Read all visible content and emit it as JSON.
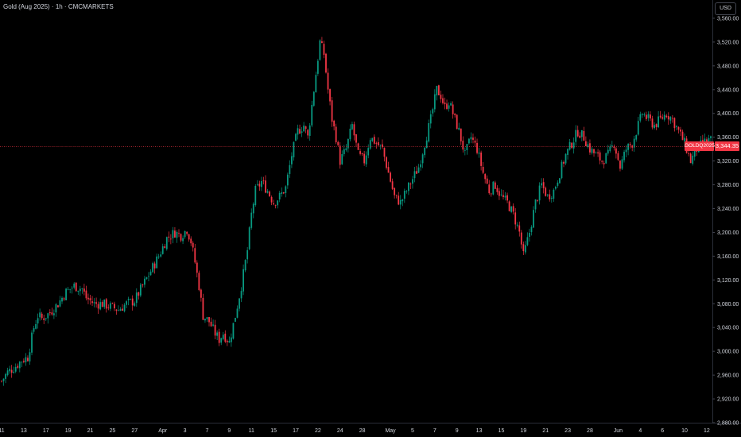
{
  "header": {
    "title": "Gold (Aug 2025) · 1h · CMCMARKETS",
    "currency": "USD"
  },
  "last_price": {
    "symbol": "GOLDQ2025",
    "value": "3,344.35",
    "y": 3344.35
  },
  "colors": {
    "up": "#089981",
    "down": "#f23645",
    "background": "#000000",
    "text": "#d1d4dc",
    "price_line": "#f23645"
  },
  "chart_data": {
    "type": "candlestick",
    "title": "Gold (Aug 2025) · 1h · CMCMARKETS",
    "ylim": [
      2880,
      3580
    ],
    "y_scale": "linear",
    "grid": false,
    "y_ticks": [
      2880,
      2920,
      2960,
      3000,
      3040,
      3080,
      3120,
      3160,
      3200,
      3240,
      3280,
      3320,
      3360,
      3400,
      3440,
      3480,
      3520,
      3560
    ],
    "y_tick_labels": [
      "2,880.00",
      "2,920.00",
      "2,960.00",
      "3,000.00",
      "3,040.00",
      "3,080.00",
      "3,120.00",
      "3,160.00",
      "3,200.00",
      "3,240.00",
      "3,280.00",
      "3,320.00",
      "3,360.00",
      "3,400.00",
      "3,440.00",
      "3,480.00",
      "3,520.00",
      "3,560.00"
    ],
    "x_tick_labels": [
      "11",
      "13",
      "17",
      "19",
      "21",
      "25",
      "27",
      "Apr",
      "3",
      "7",
      "9",
      "11",
      "15",
      "17",
      "22",
      "24",
      "28",
      "May",
      "5",
      "7",
      "9",
      "13",
      "15",
      "19",
      "21",
      "23",
      "28",
      "Jun",
      "4",
      "6",
      "10",
      "12"
    ],
    "x_tick_index": [
      0,
      11,
      22,
      33,
      44,
      55,
      66,
      80,
      91,
      102,
      113,
      124,
      135,
      146,
      157,
      168,
      179,
      193,
      204,
      215,
      226,
      237,
      248,
      259,
      270,
      281,
      292,
      306,
      317,
      328,
      339,
      350
    ],
    "x_index_range": [
      0,
      352
    ],
    "path_keypoints": [
      [
        0,
        2950
      ],
      [
        3,
        2965
      ],
      [
        7,
        2975
      ],
      [
        10,
        2985
      ],
      [
        13,
        2990
      ],
      [
        16,
        3040
      ],
      [
        18,
        3060
      ],
      [
        20,
        3055
      ],
      [
        24,
        3065
      ],
      [
        28,
        3080
      ],
      [
        32,
        3100
      ],
      [
        36,
        3110
      ],
      [
        40,
        3105
      ],
      [
        42,
        3090
      ],
      [
        46,
        3080
      ],
      [
        50,
        3080
      ],
      [
        54,
        3075
      ],
      [
        58,
        3070
      ],
      [
        62,
        3080
      ],
      [
        66,
        3085
      ],
      [
        70,
        3110
      ],
      [
        74,
        3135
      ],
      [
        78,
        3160
      ],
      [
        82,
        3190
      ],
      [
        86,
        3200
      ],
      [
        89,
        3195
      ],
      [
        92,
        3205
      ],
      [
        94,
        3185
      ],
      [
        96,
        3150
      ],
      [
        98,
        3110
      ],
      [
        100,
        3060
      ],
      [
        103,
        3050
      ],
      [
        106,
        3030
      ],
      [
        108,
        3020
      ],
      [
        110,
        3030
      ],
      [
        113,
        3015
      ],
      [
        116,
        3060
      ],
      [
        119,
        3110
      ],
      [
        122,
        3170
      ],
      [
        124,
        3230
      ],
      [
        126,
        3270
      ],
      [
        129,
        3285
      ],
      [
        132,
        3270
      ],
      [
        135,
        3250
      ],
      [
        138,
        3260
      ],
      [
        141,
        3275
      ],
      [
        144,
        3330
      ],
      [
        147,
        3370
      ],
      [
        150,
        3380
      ],
      [
        152,
        3360
      ],
      [
        155,
        3440
      ],
      [
        158,
        3520
      ],
      [
        160,
        3500
      ],
      [
        162,
        3440
      ],
      [
        164,
        3390
      ],
      [
        166,
        3360
      ],
      [
        168,
        3320
      ],
      [
        171,
        3340
      ],
      [
        174,
        3380
      ],
      [
        177,
        3330
      ],
      [
        180,
        3320
      ],
      [
        183,
        3360
      ],
      [
        186,
        3350
      ],
      [
        189,
        3340
      ],
      [
        192,
        3300
      ],
      [
        195,
        3260
      ],
      [
        198,
        3250
      ],
      [
        201,
        3270
      ],
      [
        204,
        3290
      ],
      [
        207,
        3310
      ],
      [
        210,
        3350
      ],
      [
        213,
        3390
      ],
      [
        216,
        3440
      ],
      [
        218,
        3430
      ],
      [
        220,
        3410
      ],
      [
        222,
        3420
      ],
      [
        224,
        3400
      ],
      [
        227,
        3370
      ],
      [
        230,
        3330
      ],
      [
        233,
        3360
      ],
      [
        236,
        3340
      ],
      [
        239,
        3300
      ],
      [
        242,
        3270
      ],
      [
        245,
        3280
      ],
      [
        248,
        3260
      ],
      [
        251,
        3250
      ],
      [
        254,
        3230
      ],
      [
        257,
        3200
      ],
      [
        259,
        3160
      ],
      [
        262,
        3200
      ],
      [
        265,
        3250
      ],
      [
        268,
        3280
      ],
      [
        271,
        3260
      ],
      [
        274,
        3270
      ],
      [
        277,
        3300
      ],
      [
        280,
        3330
      ],
      [
        283,
        3350
      ],
      [
        286,
        3370
      ],
      [
        289,
        3360
      ],
      [
        292,
        3340
      ],
      [
        295,
        3330
      ],
      [
        298,
        3320
      ],
      [
        301,
        3330
      ],
      [
        304,
        3350
      ],
      [
        307,
        3310
      ],
      [
        310,
        3340
      ],
      [
        313,
        3350
      ],
      [
        316,
        3380
      ],
      [
        318,
        3400
      ],
      [
        321,
        3390
      ],
      [
        324,
        3380
      ],
      [
        327,
        3390
      ],
      [
        330,
        3400
      ],
      [
        333,
        3390
      ],
      [
        336,
        3370
      ],
      [
        339,
        3350
      ],
      [
        342,
        3320
      ],
      [
        345,
        3340
      ],
      [
        348,
        3350
      ],
      [
        351,
        3355
      ]
    ]
  }
}
